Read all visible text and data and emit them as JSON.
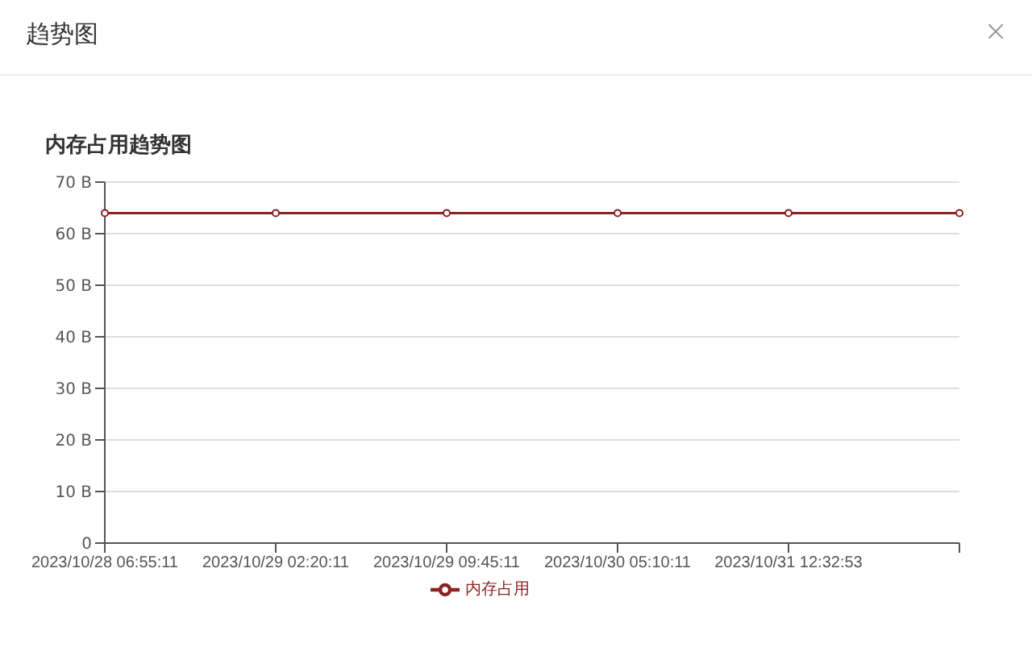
{
  "chart_data": {
    "type": "line",
    "title": "内存占用趋势图",
    "categories": [
      "2023/10/28 06:55:11",
      "2023/10/29 02:20:11",
      "2023/10/29 09:45:11",
      "2023/10/30 05:10:11",
      "2023/10/31 12:32:53",
      null
    ],
    "series": [
      {
        "name": "内存占用",
        "color": "#8b2323",
        "values": [
          64,
          64,
          64,
          64,
          64,
          64
        ]
      }
    ],
    "ylim": [
      0,
      70
    ],
    "yticks": [
      0,
      {
        "value": 10,
        "label": "10 B"
      },
      {
        "value": 20,
        "label": "20 B"
      },
      {
        "value": 30,
        "label": "30 B"
      },
      {
        "value": 40,
        "label": "40 B"
      },
      {
        "value": 50,
        "label": "50 B"
      },
      {
        "value": 60,
        "label": "60 B"
      },
      {
        "value": 70,
        "label": "70 B"
      }
    ],
    "grid": "y",
    "legend": "bottom",
    "marker": "circle",
    "line_style": "solid",
    "annotations": [
      "趋势图"
    ]
  }
}
